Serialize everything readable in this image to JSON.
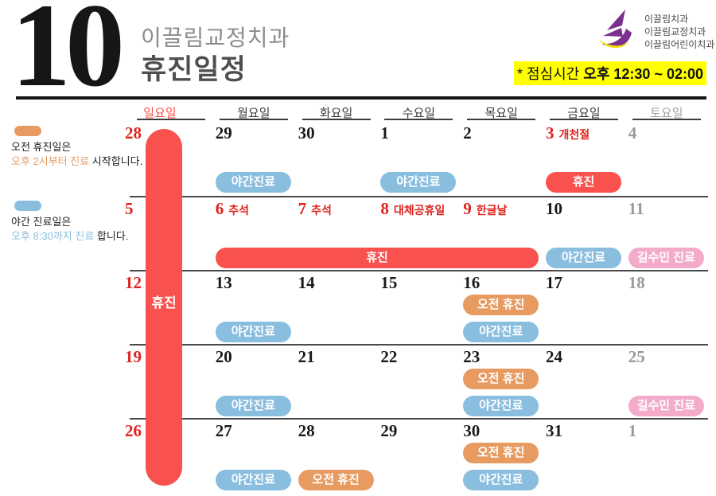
{
  "header": {
    "month_number": "10",
    "clinic_name": "이끌림교정치과",
    "page_title": "휴진일정",
    "logo_names": [
      "이끌림치과",
      "이끌림교정치과",
      "이끌림어린이치과"
    ],
    "lunch_note_prefix": "* 점심시간 ",
    "lunch_note_time": "오후 12:30 ~ 02:00"
  },
  "legend": {
    "morning": {
      "title": "오전 휴진일은",
      "highlight": "오후 2시부터 진료",
      "suffix": " 시작합니다."
    },
    "night": {
      "title": "야간 진료일은",
      "highlight": "오후 8:30까지 진료",
      "suffix": " 합니다."
    }
  },
  "calendar": {
    "day_headers": [
      {
        "label": "일요일",
        "type": "sun"
      },
      {
        "label": "월요일",
        "type": "weekday"
      },
      {
        "label": "화요일",
        "type": "weekday"
      },
      {
        "label": "수요일",
        "type": "weekday"
      },
      {
        "label": "목요일",
        "type": "weekday"
      },
      {
        "label": "금요일",
        "type": "weekday"
      },
      {
        "label": "토요일",
        "type": "sat"
      }
    ],
    "pill_labels": {
      "night": "야간진료",
      "morning": "오전 휴진",
      "closed": "휴진",
      "special": "길수민 진료"
    },
    "sunday_bar_label": "휴진",
    "weeks": [
      {
        "days": [
          {
            "num": "28",
            "color": "red"
          },
          {
            "num": "29",
            "color": "black",
            "pills": [
              {
                "type": "night",
                "slot": "lower"
              }
            ]
          },
          {
            "num": "30",
            "color": "black"
          },
          {
            "num": "1",
            "color": "black",
            "pills": [
              {
                "type": "night",
                "slot": "lower"
              }
            ]
          },
          {
            "num": "2",
            "color": "black"
          },
          {
            "num": "3",
            "color": "red",
            "holiday": "개천절",
            "pills": [
              {
                "type": "closed",
                "slot": "lower"
              }
            ]
          },
          {
            "num": "4",
            "color": "gray"
          }
        ]
      },
      {
        "days": [
          {
            "num": "5",
            "color": "red"
          },
          {
            "num": "6",
            "color": "red",
            "holiday": "추석"
          },
          {
            "num": "7",
            "color": "red",
            "holiday": "추석"
          },
          {
            "num": "8",
            "color": "red",
            "holiday": "대체공휴일"
          },
          {
            "num": "9",
            "color": "red",
            "holiday": "한글날"
          },
          {
            "num": "10",
            "color": "black",
            "pills": [
              {
                "type": "night",
                "slot": "lower"
              }
            ]
          },
          {
            "num": "11",
            "color": "gray",
            "pills": [
              {
                "type": "special",
                "slot": "lower"
              }
            ]
          }
        ],
        "span_pill": {
          "type": "closed",
          "from_col": 1,
          "to_col": 4,
          "slot": "lower"
        }
      },
      {
        "days": [
          {
            "num": "12",
            "color": "red"
          },
          {
            "num": "13",
            "color": "black",
            "pills": [
              {
                "type": "night",
                "slot": "lower"
              }
            ]
          },
          {
            "num": "14",
            "color": "black"
          },
          {
            "num": "15",
            "color": "black"
          },
          {
            "num": "16",
            "color": "black",
            "pills": [
              {
                "type": "morning",
                "slot": "upper"
              },
              {
                "type": "night",
                "slot": "lower"
              }
            ]
          },
          {
            "num": "17",
            "color": "black"
          },
          {
            "num": "18",
            "color": "gray"
          }
        ]
      },
      {
        "days": [
          {
            "num": "19",
            "color": "red"
          },
          {
            "num": "20",
            "color": "black",
            "pills": [
              {
                "type": "night",
                "slot": "lower"
              }
            ]
          },
          {
            "num": "21",
            "color": "black"
          },
          {
            "num": "22",
            "color": "black"
          },
          {
            "num": "23",
            "color": "black",
            "pills": [
              {
                "type": "morning",
                "slot": "upper"
              },
              {
                "type": "night",
                "slot": "lower"
              }
            ]
          },
          {
            "num": "24",
            "color": "black"
          },
          {
            "num": "25",
            "color": "gray",
            "pills": [
              {
                "type": "special",
                "slot": "lower"
              }
            ]
          }
        ]
      },
      {
        "days": [
          {
            "num": "26",
            "color": "red"
          },
          {
            "num": "27",
            "color": "black",
            "pills": [
              {
                "type": "night",
                "slot": "lower"
              }
            ]
          },
          {
            "num": "28",
            "color": "black",
            "pills": [
              {
                "type": "morning",
                "slot": "lower"
              }
            ]
          },
          {
            "num": "29",
            "color": "black"
          },
          {
            "num": "30",
            "color": "black",
            "pills": [
              {
                "type": "morning",
                "slot": "upper"
              },
              {
                "type": "night",
                "slot": "lower"
              }
            ]
          },
          {
            "num": "31",
            "color": "black"
          },
          {
            "num": "1",
            "color": "gray"
          }
        ]
      }
    ]
  },
  "colors": {
    "pill_night": "#8ABEDF",
    "pill_morning": "#E79B61",
    "pill_closed": "#F8514E",
    "pill_special": "#F4ABCA",
    "date_red": "#DF231D",
    "date_black": "#1a1a1a",
    "date_gray": "#98989D",
    "sun_header": "#F8514E",
    "weekday_header": "#3A3A3A",
    "sat_header": "#A2A2A2",
    "lunch_bg": "#FFFF00",
    "logo_purple": "#7B2F8E",
    "logo_yellow": "#F2DF0A"
  }
}
